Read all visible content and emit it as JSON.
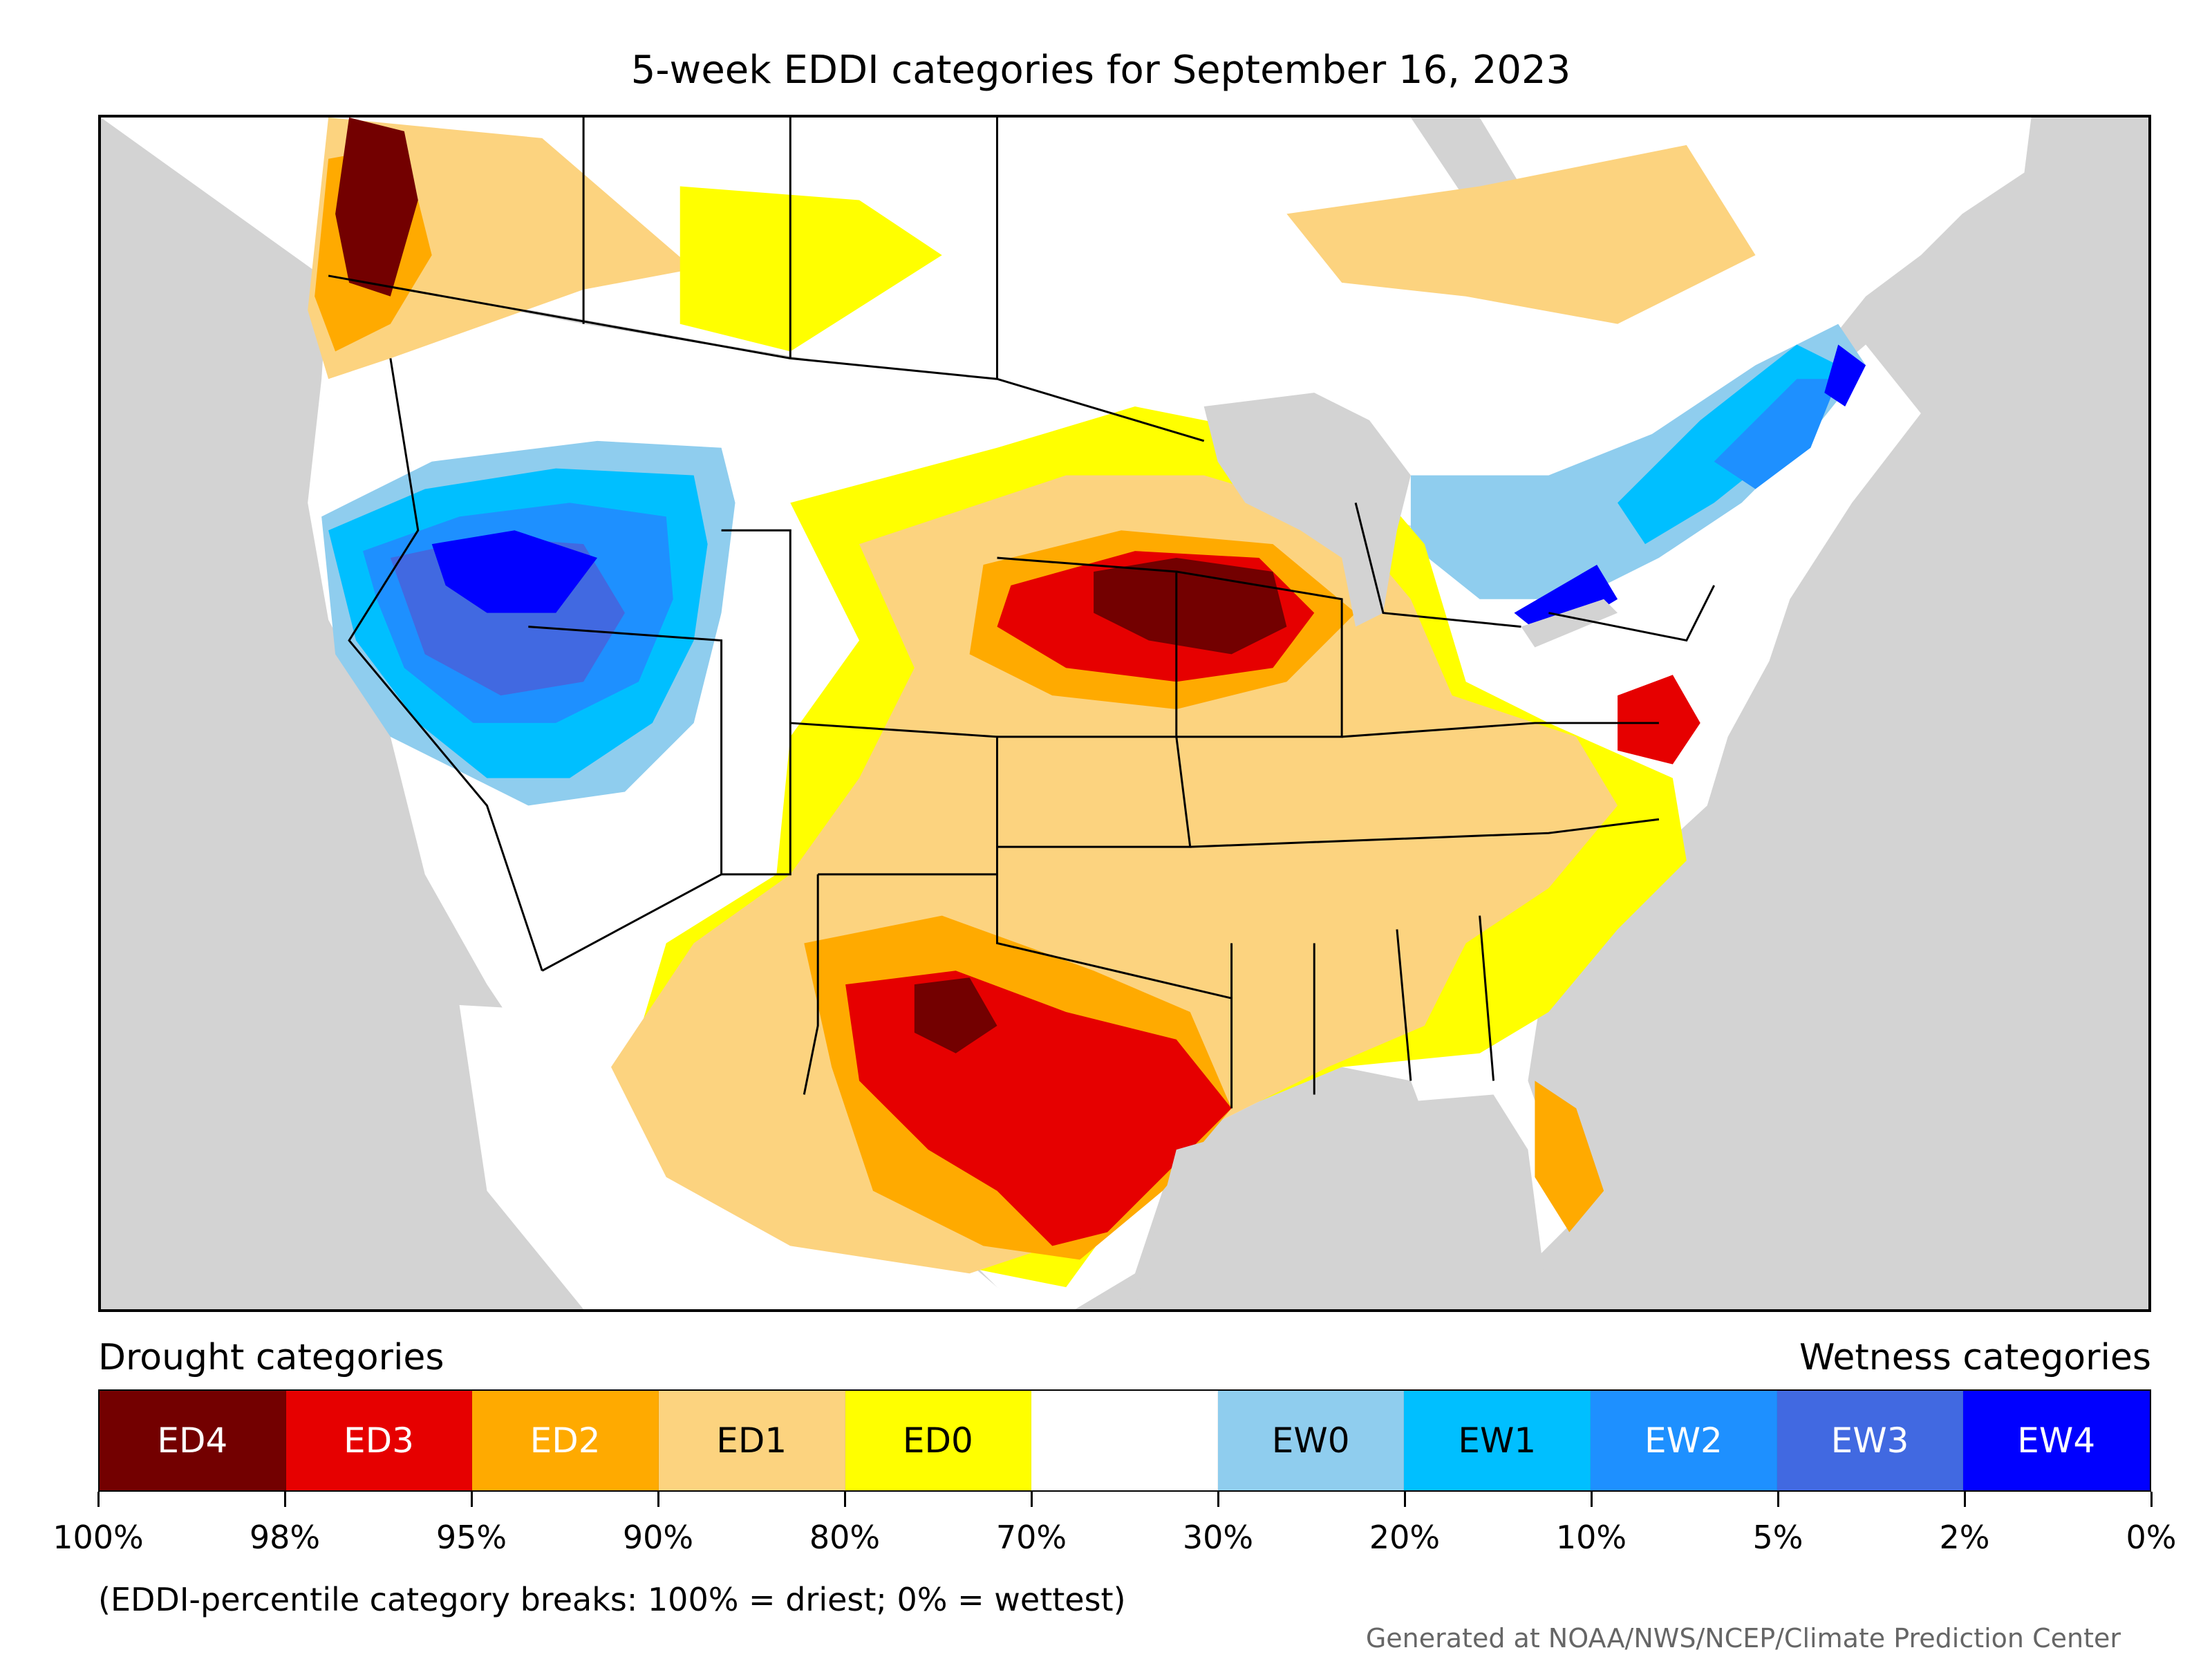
{
  "title": "5-week EDDI categories for September 16, 2023",
  "legend": {
    "drought_label": "Drought categories",
    "wetness_label": "Wetness categories",
    "categories": [
      {
        "label": "ED4",
        "color": "#730000",
        "text_color": "#ffffff"
      },
      {
        "label": "ED3",
        "color": "#e60000",
        "text_color": "#ffffff"
      },
      {
        "label": "ED2",
        "color": "#ffaa00",
        "text_color": "#ffffff"
      },
      {
        "label": "ED1",
        "color": "#fcd37f",
        "text_color": "#000000"
      },
      {
        "label": "ED0",
        "color": "#ffff00",
        "text_color": "#000000"
      },
      {
        "label": "",
        "color": "#ffffff",
        "text_color": "#000000"
      },
      {
        "label": "EW0",
        "color": "#8fcdee",
        "text_color": "#000000"
      },
      {
        "label": "EW1",
        "color": "#00bfff",
        "text_color": "#000000"
      },
      {
        "label": "EW2",
        "color": "#1e90ff",
        "text_color": "#ffffff"
      },
      {
        "label": "EW3",
        "color": "#4169e1",
        "text_color": "#ffffff"
      },
      {
        "label": "EW4",
        "color": "#0000ff",
        "text_color": "#ffffff"
      }
    ],
    "tick_labels": [
      "100%",
      "98%",
      "95%",
      "90%",
      "80%",
      "70%",
      "30%",
      "20%",
      "10%",
      "5%",
      "2%",
      "0%"
    ]
  },
  "note": "(EDDI-percentile category breaks: 100% = driest; 0% = wettest)",
  "credit": "Generated at NOAA/NWS/NCEP/Climate Prediction Center",
  "map_colors": {
    "background": "#d3d3d3",
    "ED4": "#730000",
    "ED3": "#e60000",
    "ED2": "#ffaa00",
    "ED1": "#fcd37f",
    "ED0": "#ffff00",
    "neutral": "#ffffff",
    "EW0": "#8fcdee",
    "EW1": "#00bfff",
    "EW2": "#1e90ff",
    "EW3": "#4169e1",
    "EW4": "#0000ff"
  }
}
